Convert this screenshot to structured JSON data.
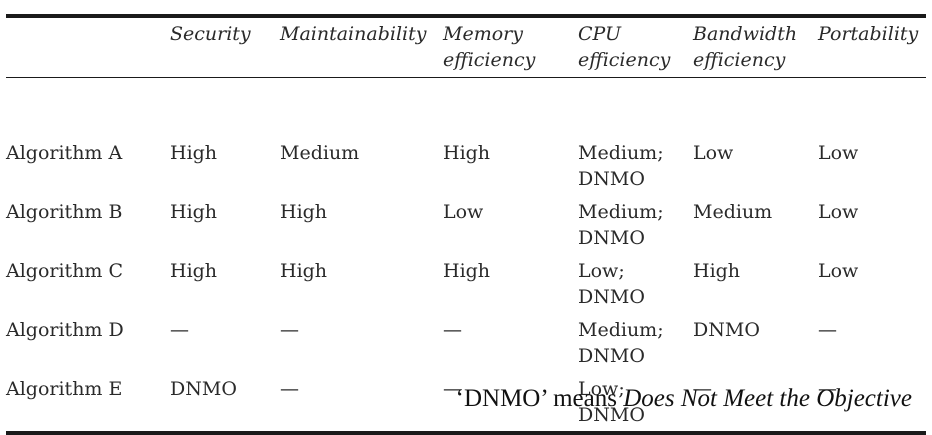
{
  "table": {
    "headers": [
      {
        "line1": "",
        "line2": ""
      },
      {
        "line1": "Security",
        "line2": ""
      },
      {
        "line1": "Maintainability",
        "line2": ""
      },
      {
        "line1": "Memory",
        "line2": "efficiency"
      },
      {
        "line1": "CPU",
        "line2": "efficiency"
      },
      {
        "line1": "Bandwidth",
        "line2": "efficiency"
      },
      {
        "line1": "Portability",
        "line2": ""
      }
    ],
    "rows": [
      [
        {
          "line1": "Algorithm A",
          "line2": ""
        },
        {
          "line1": "High",
          "line2": ""
        },
        {
          "line1": "Medium",
          "line2": ""
        },
        {
          "line1": "High",
          "line2": ""
        },
        {
          "line1": "Medium;",
          "line2": "DNMO"
        },
        {
          "line1": "Low",
          "line2": ""
        },
        {
          "line1": "Low",
          "line2": ""
        }
      ],
      [
        {
          "line1": "Algorithm B",
          "line2": ""
        },
        {
          "line1": "High",
          "line2": ""
        },
        {
          "line1": "High",
          "line2": ""
        },
        {
          "line1": "Low",
          "line2": ""
        },
        {
          "line1": "Medium;",
          "line2": "DNMO"
        },
        {
          "line1": "Medium",
          "line2": ""
        },
        {
          "line1": "Low",
          "line2": ""
        }
      ],
      [
        {
          "line1": "Algorithm C",
          "line2": ""
        },
        {
          "line1": "High",
          "line2": ""
        },
        {
          "line1": "High",
          "line2": ""
        },
        {
          "line1": "High",
          "line2": ""
        },
        {
          "line1": "Low;",
          "line2": "DNMO"
        },
        {
          "line1": "High",
          "line2": ""
        },
        {
          "line1": "Low",
          "line2": ""
        }
      ],
      [
        {
          "line1": "Algorithm D",
          "line2": ""
        },
        {
          "line1": "—",
          "line2": ""
        },
        {
          "line1": "—",
          "line2": ""
        },
        {
          "line1": "—",
          "line2": ""
        },
        {
          "line1": "Medium;",
          "line2": "DNMO"
        },
        {
          "line1": "DNMO",
          "line2": ""
        },
        {
          "line1": "—",
          "line2": ""
        }
      ],
      [
        {
          "line1": "Algorithm E",
          "line2": ""
        },
        {
          "line1": "DNMO",
          "line2": ""
        },
        {
          "line1": "—",
          "line2": ""
        },
        {
          "line1": "—",
          "line2": ""
        },
        {
          "line1": "Low;",
          "line2": "DNMO"
        },
        {
          "line1": "—",
          "line2": ""
        },
        {
          "line1": "—",
          "line2": ""
        }
      ]
    ]
  },
  "footnote": {
    "prefix": "‘DNMO’ means ",
    "emphasis": "Does Not Meet the Objective"
  }
}
